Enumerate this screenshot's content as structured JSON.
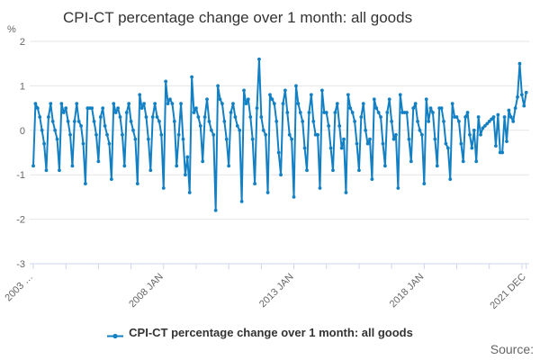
{
  "title": "CPI-CT percentage change over 1 month: all goods",
  "legend": {
    "label": "CPI-CT percentage change over 1 month: all goods"
  },
  "source": {
    "label": "Source:"
  },
  "y_axis": {
    "unit_label": "%"
  },
  "x_axis": {
    "tick_labels": [
      "2003 …",
      "2008 JAN",
      "2013 JAN",
      "2018 JAN",
      "2021 DEC"
    ]
  },
  "colors": {
    "series": "#1380c4",
    "grid": "#e6e6e6",
    "axis": "#ccd6eb",
    "text_muted": "#666666",
    "text_dark": "#333333"
  },
  "chart_data": {
    "type": "line",
    "title": "CPI-CT percentage change over 1 month: all goods",
    "ylabel": "%",
    "frequency": "monthly",
    "start_period": "2003 JAN",
    "end_period": "2021 DEC",
    "ylim": [
      -3,
      2
    ],
    "yticks": [
      2,
      1,
      0,
      -1,
      -2,
      -3
    ],
    "grid": "horizontal",
    "legend_position": "bottom",
    "labeled_month_indices": [
      0,
      60,
      120,
      180,
      227
    ],
    "minor_tick_interval_months": 15,
    "series": [
      {
        "name": "CPI-CT percentage change over 1 month: all goods",
        "values": [
          -0.8,
          0.6,
          0.5,
          0.3,
          0.0,
          -0.3,
          -0.9,
          0.3,
          0.6,
          0.2,
          0.0,
          -0.2,
          -0.9,
          0.6,
          0.4,
          0.5,
          0.2,
          -0.1,
          -0.8,
          0.2,
          0.6,
          0.2,
          0.1,
          -0.3,
          -1.2,
          0.5,
          0.5,
          0.5,
          0.2,
          -0.1,
          -0.7,
          0.3,
          0.5,
          0.1,
          -0.1,
          -0.3,
          -1.1,
          0.6,
          0.4,
          0.5,
          0.3,
          -0.1,
          -0.8,
          0.4,
          0.6,
          0.2,
          0.0,
          -0.2,
          -1.2,
          0.8,
          0.5,
          0.6,
          0.3,
          -0.2,
          -0.9,
          0.3,
          0.6,
          0.3,
          0.2,
          -0.1,
          -1.3,
          1.1,
          0.6,
          0.7,
          0.6,
          0.2,
          -0.8,
          -0.1,
          0.6,
          -0.2,
          -1.0,
          -0.6,
          -1.4,
          1.2,
          0.4,
          0.5,
          0.3,
          0.1,
          -0.7,
          0.3,
          0.7,
          0.2,
          0.0,
          -0.1,
          -1.8,
          1.0,
          0.7,
          0.6,
          0.2,
          -0.2,
          -0.8,
          0.4,
          0.6,
          0.3,
          0.1,
          0.0,
          -1.6,
          0.9,
          0.6,
          0.7,
          0.3,
          -0.2,
          -1.2,
          0.5,
          1.6,
          0.3,
          0.0,
          -0.1,
          -1.4,
          0.8,
          0.7,
          0.6,
          0.2,
          -0.5,
          -1.0,
          0.6,
          0.9,
          0.4,
          -0.1,
          -0.2,
          -1.5,
          1.0,
          0.6,
          0.4,
          0.2,
          -0.4,
          -0.9,
          0.4,
          0.8,
          0.2,
          -0.1,
          -0.1,
          -1.3,
          0.9,
          0.4,
          0.4,
          0.1,
          -0.4,
          -0.9,
          0.4,
          0.6,
          0.1,
          -0.4,
          -0.2,
          -1.4,
          0.8,
          0.5,
          0.4,
          0.2,
          -0.3,
          -0.9,
          0.3,
          0.6,
          0.0,
          -0.3,
          -0.2,
          -1.1,
          0.7,
          0.5,
          0.4,
          0.3,
          -0.3,
          -0.8,
          0.4,
          0.7,
          0.2,
          -0.2,
          -0.1,
          -1.3,
          0.8,
          0.4,
          0.4,
          0.4,
          -0.2,
          -0.7,
          0.5,
          0.6,
          0.2,
          0.0,
          -0.1,
          -1.2,
          0.7,
          0.2,
          0.5,
          0.4,
          -0.2,
          -0.8,
          0.5,
          0.5,
          0.2,
          -0.3,
          -0.4,
          -1.1,
          0.6,
          0.3,
          0.3,
          0.2,
          -0.3,
          -0.7,
          0.3,
          0.4,
          -0.1,
          -0.4,
          0.0,
          -0.7,
          0.3,
          -0.1,
          0.05,
          0.1,
          0.15,
          0.2,
          0.25,
          0.3,
          -0.35,
          0.35,
          -0.5,
          -0.5,
          0.3,
          -0.25,
          0.45,
          0.3,
          0.2,
          0.5,
          0.75,
          1.5,
          0.8,
          0.55,
          0.85
        ]
      }
    ]
  }
}
